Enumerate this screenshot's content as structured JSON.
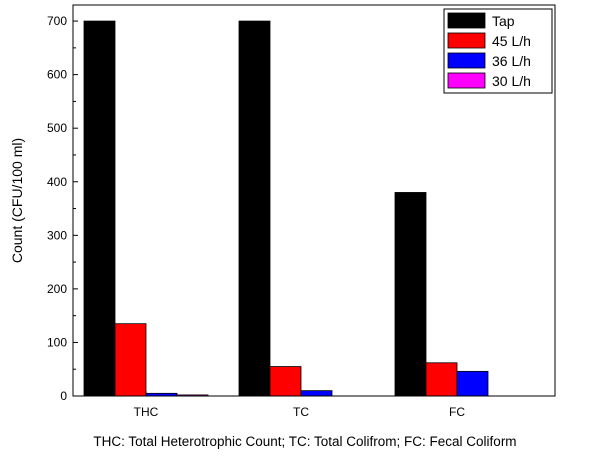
{
  "chart_data": {
    "type": "bar",
    "categories": [
      "THC",
      "TC",
      "FC"
    ],
    "series": [
      {
        "name": "Tap",
        "color": "#000000",
        "values": [
          700,
          700,
          380
        ]
      },
      {
        "name": "45 L/h",
        "color": "#ff0000",
        "values": [
          135,
          55,
          62
        ]
      },
      {
        "name": "36 L/h",
        "color": "#0000ff",
        "values": [
          5,
          10,
          46
        ]
      },
      {
        "name": "30 L/h",
        "color": "#ff00ff",
        "values": [
          2,
          0,
          0
        ]
      }
    ],
    "title": "",
    "xlabel": "",
    "ylabel": "Count (CFU/100 ml)",
    "ylim": [
      0,
      730
    ],
    "yticks": [
      0,
      100,
      200,
      300,
      400,
      500,
      600,
      700
    ],
    "legend_position": "top-right",
    "grid": false
  },
  "caption": "THC: Total Heterotrophic Count; TC: Total Colifrom; FC: Fecal Coliform"
}
